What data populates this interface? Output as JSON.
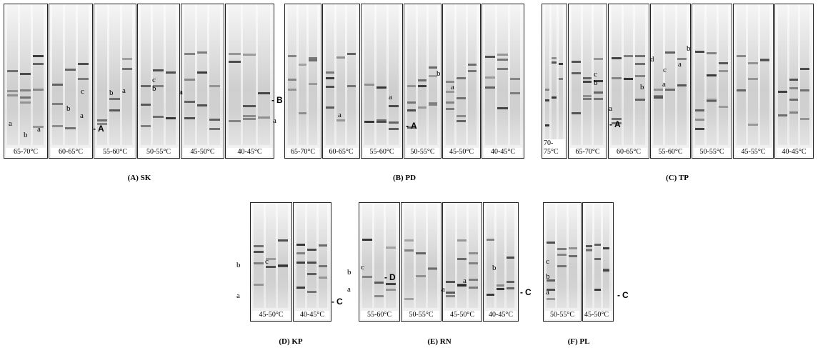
{
  "panels": [
    {
      "caption": "(A) SK",
      "gels": [
        "65-70°C",
        "60-65°C",
        "55-60°C",
        "50-55°C",
        "45-50°C",
        "40-45°C"
      ],
      "annotations": [
        "a",
        "b",
        "a",
        "b",
        "c",
        "a",
        "b",
        "a",
        "c",
        "b",
        "a"
      ],
      "markers": [
        "A",
        "B"
      ]
    },
    {
      "caption": "(B) PD",
      "gels": [
        "65-70°C",
        "60-65°C",
        "55-60°C",
        "50-55°C",
        "45-50°C",
        "40-45°C"
      ],
      "annotations": [
        "a",
        "a",
        "a",
        "b",
        "a"
      ],
      "markers": [
        "A"
      ]
    },
    {
      "caption": "(C) TP",
      "gels": [
        "70-75°C",
        "65-70°C",
        "60-65°C",
        "55-60°C",
        "50-55°C",
        "45-55°C",
        "40-45°C"
      ],
      "annotations": [
        "a",
        "c",
        "b",
        "d",
        "c",
        "a",
        "b",
        "a",
        "b"
      ],
      "markers": [
        "A"
      ]
    },
    {
      "caption": "(D) KP",
      "gels": [
        "45-50°C",
        "40-45°C"
      ],
      "annotations": [
        "b",
        "a",
        "c"
      ],
      "markers": [
        "C"
      ]
    },
    {
      "caption": "(E) RN",
      "gels": [
        "55-60°C",
        "50-55°C",
        "45-50°C",
        "40-45°C"
      ],
      "annotations": [
        "b",
        "c",
        "a",
        "a",
        "a",
        "b"
      ],
      "markers": [
        "D",
        "C"
      ]
    },
    {
      "caption": "(F) PL",
      "gels": [
        "50-55°C",
        "45-50°C"
      ],
      "annotations": [
        "c",
        "b",
        "a"
      ],
      "markers": [
        "C"
      ]
    }
  ]
}
